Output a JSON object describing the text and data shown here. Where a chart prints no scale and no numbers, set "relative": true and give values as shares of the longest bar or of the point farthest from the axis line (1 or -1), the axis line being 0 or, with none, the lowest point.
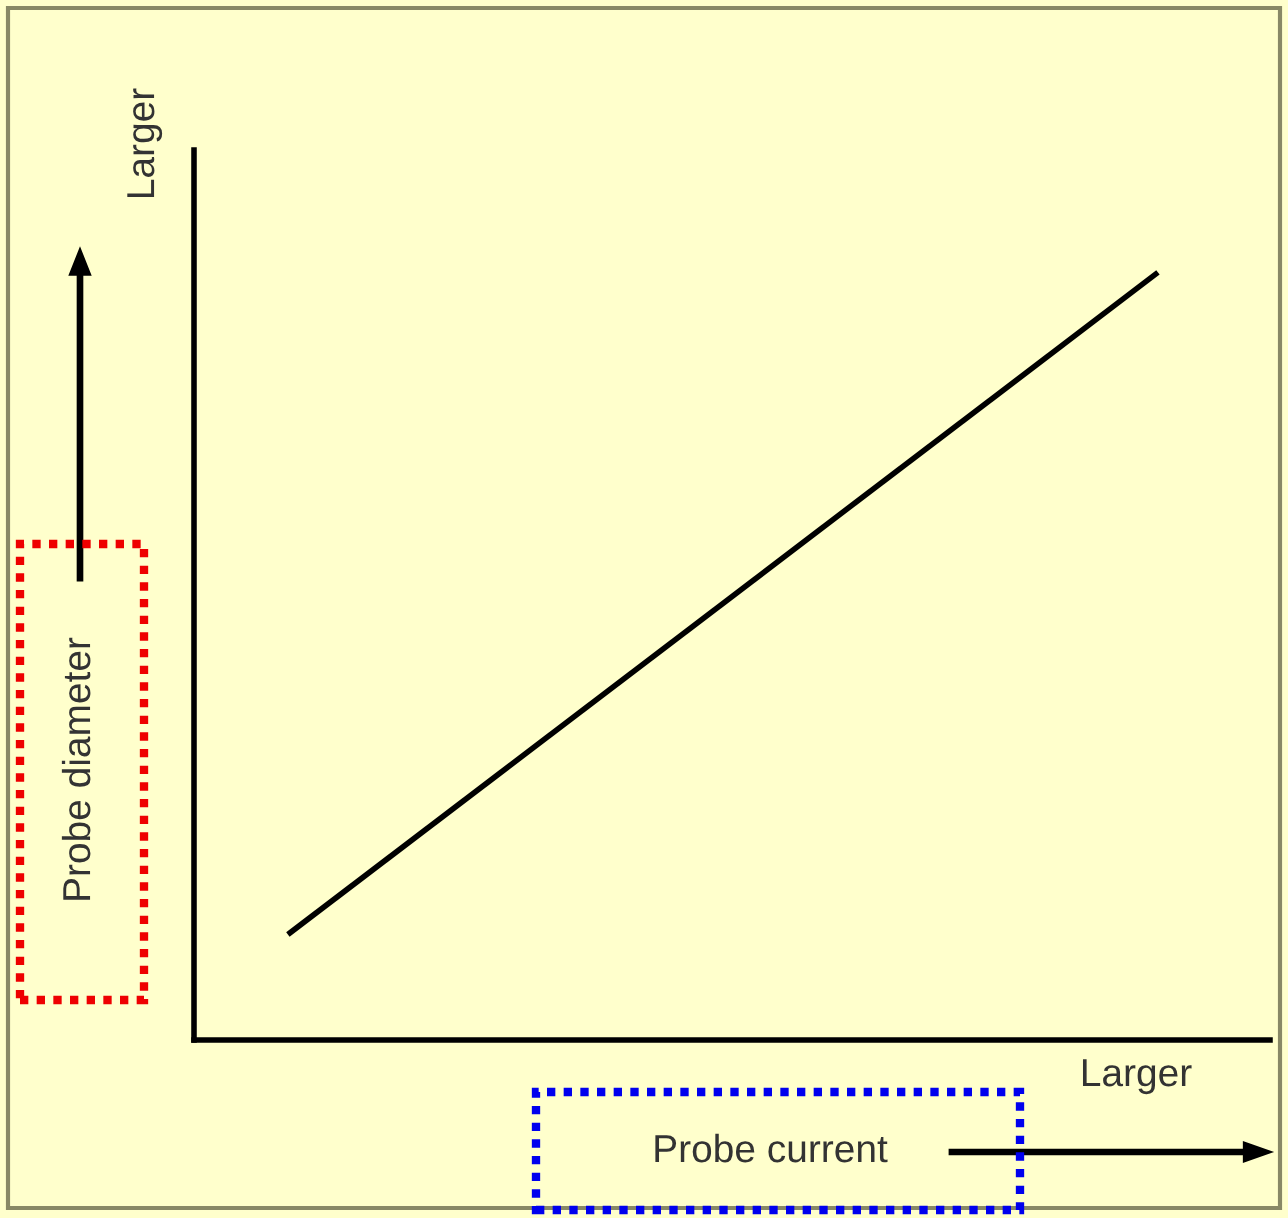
{
  "chart_data": {
    "type": "line",
    "relative": true,
    "categories": [
      null,
      null
    ],
    "series": [
      {
        "color": "#000000",
        "values": [
          0.14,
          1
        ]
      }
    ],
    "xlabel": "Probe current",
    "ylabel": "Probe diameter",
    "annotations": [
      "Larger",
      "Larger"
    ],
    "grid": false,
    "legend": false,
    "marker": "none",
    "line_style": "solid"
  }
}
